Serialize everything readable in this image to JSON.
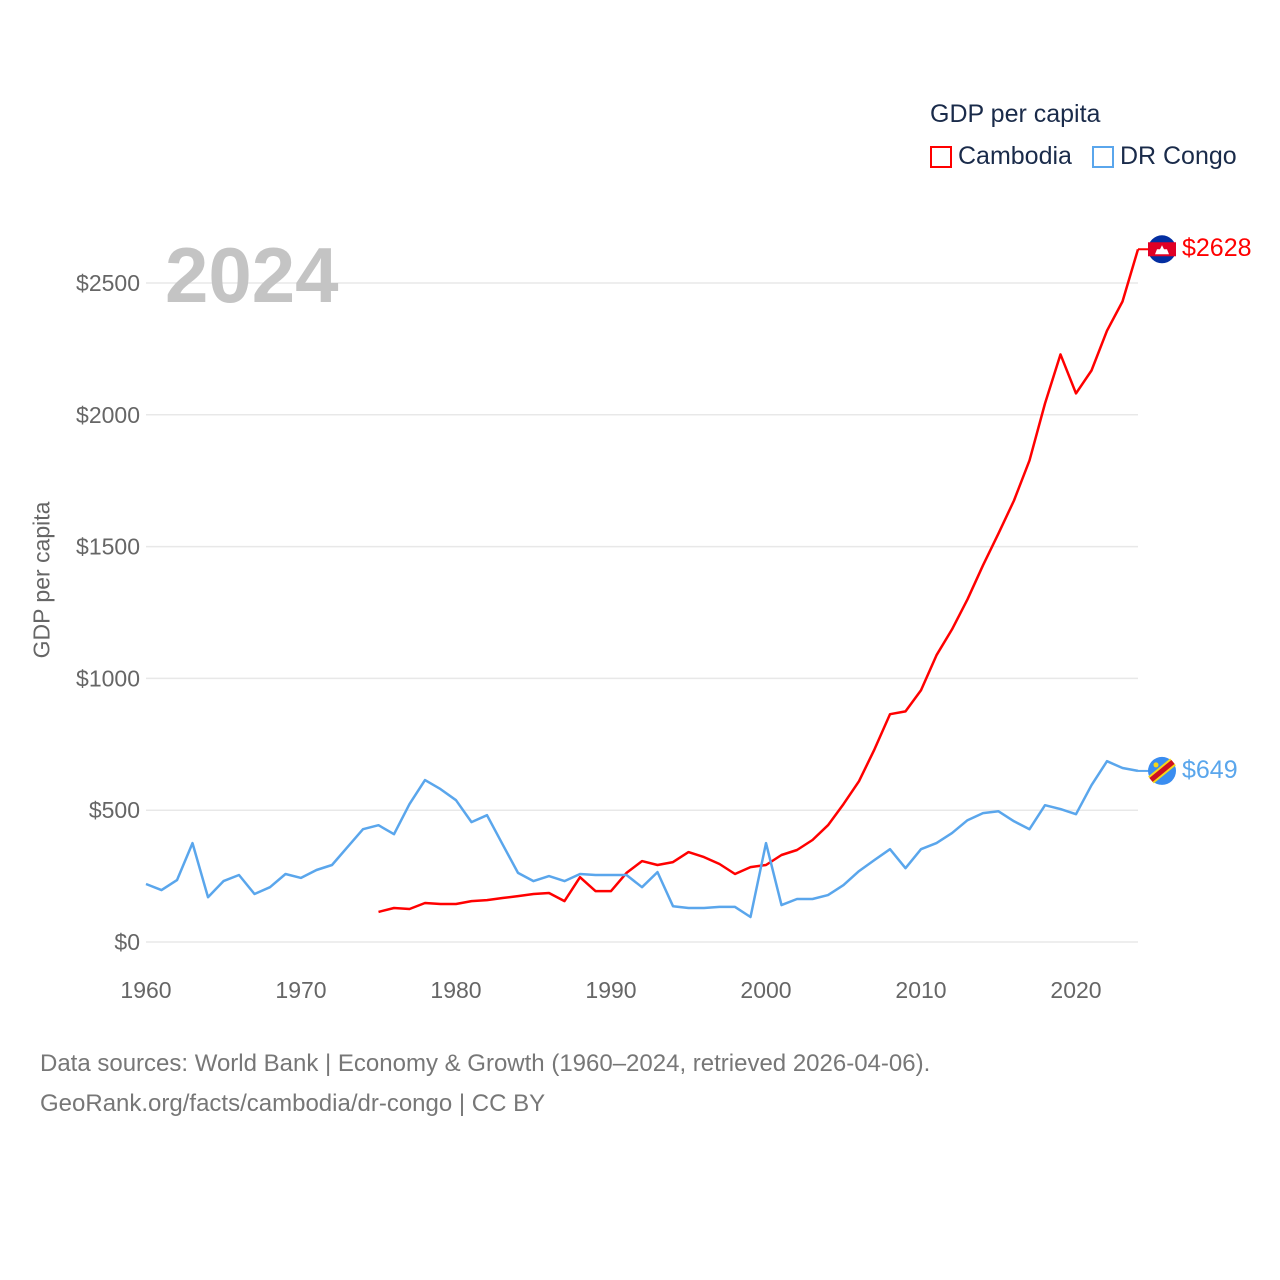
{
  "chart_data": {
    "type": "line",
    "title": "GDP per capita",
    "ylabel": "GDP per capita",
    "xlabel": "",
    "xlim": [
      1960,
      2024
    ],
    "ylim": [
      0,
      2700
    ],
    "x_ticks": [
      "1960",
      "1970",
      "1980",
      "1990",
      "2000",
      "2010",
      "2020"
    ],
    "y_ticks": [
      {
        "value": 0,
        "label": "$0"
      },
      {
        "value": 500,
        "label": "$500"
      },
      {
        "value": 1000,
        "label": "$1000"
      },
      {
        "value": 1500,
        "label": "$1500"
      },
      {
        "value": 2000,
        "label": "$2000"
      },
      {
        "value": 2500,
        "label": "$2500"
      }
    ],
    "grid": true,
    "legend_placement": "top-right",
    "year_label": "2024",
    "series": [
      {
        "name": "Cambodia",
        "color": "#ff0000",
        "start_year": 1975,
        "end_label": "$2628",
        "flag_icon": "cambodia-flag-icon",
        "values": [
          114,
          129,
          125,
          148,
          144,
          144,
          155,
          159,
          167,
          174,
          182,
          186,
          155,
          246,
          193,
          193,
          262,
          307,
          292,
          303,
          341,
          322,
          296,
          258,
          284,
          292,
          330,
          349,
          387,
          443,
          523,
          610,
          731,
          864,
          875,
          955,
          1088,
          1186,
          1300,
          1429,
          1550,
          1675,
          1827,
          2043,
          2229,
          2081,
          2168,
          2319,
          2430,
          2628
        ]
      },
      {
        "name": "DR Congo",
        "color": "#5aa6ec",
        "start_year": 1960,
        "end_label": "$649",
        "flag_icon": "dr-congo-flag-icon",
        "values": [
          220,
          197,
          235,
          375,
          170,
          231,
          254,
          182,
          208,
          258,
          243,
          273,
          292,
          360,
          428,
          443,
          409,
          523,
          614,
          580,
          538,
          455,
          481,
          371,
          262,
          231,
          250,
          231,
          258,
          254,
          254,
          254,
          208,
          265,
          136,
          129,
          129,
          133,
          133,
          95,
          375,
          140,
          163,
          163,
          178,
          216,
          269,
          311,
          352,
          280,
          352,
          375,
          413,
          462,
          489,
          496,
          458,
          428,
          519,
          504,
          485,
          595,
          686,
          660,
          649
        ]
      }
    ]
  },
  "footer": {
    "line1": "Data sources: World Bank | Economy & Growth (1960–2024, retrieved 2026-04-06).",
    "line2": "GeoRank.org/facts/cambodia/dr-congo | CC BY"
  }
}
